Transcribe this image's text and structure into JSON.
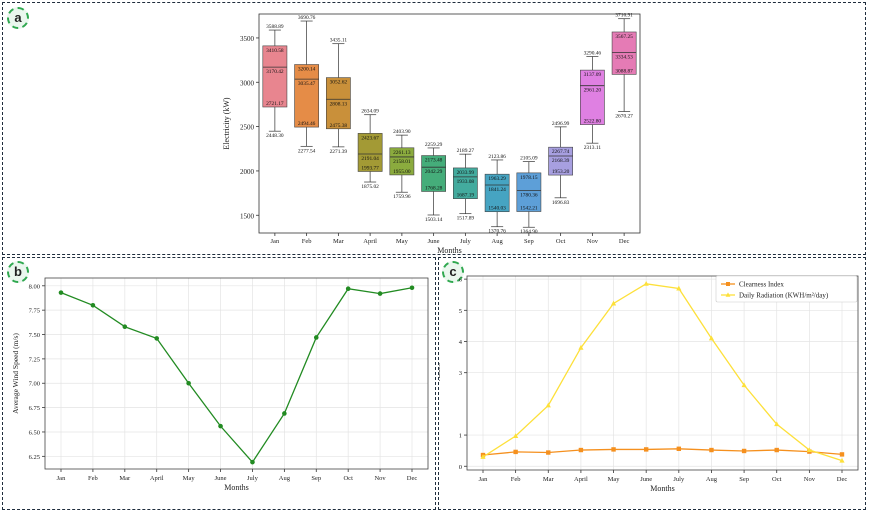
{
  "panels": [
    {
      "label": "a"
    },
    {
      "label": "b"
    },
    {
      "label": "c"
    }
  ],
  "colors": {
    "box": [
      "#e8858f",
      "#e58c47",
      "#c9903a",
      "#a39a35",
      "#8bab3e",
      "#45ad7a",
      "#43ab9e",
      "#46a4c2",
      "#5d9fd8",
      "#a79fe0",
      "#df80e2",
      "#e57bb5"
    ],
    "wind_line": "#228b22",
    "clearness": "#f5901e",
    "radiation": "#fde03a",
    "panel_border": "#1f2d3d",
    "badge": "#2fa84f"
  },
  "chart_data": [
    {
      "type": "box",
      "panel": "a",
      "xlabel": "Months",
      "ylabel": "Electricity (kW)",
      "categories": [
        "Jan",
        "Feb",
        "Mar",
        "April",
        "May",
        "June",
        "July",
        "Aug",
        "Sep",
        "Oct",
        "Nov",
        "Dec"
      ],
      "yticks": [
        1500,
        2000,
        2500,
        3000,
        3500
      ],
      "ylim": [
        1300,
        3770
      ],
      "grid": false,
      "boxes": [
        {
          "max": 3588.89,
          "q3": 3410.58,
          "median": 3170.42,
          "q1": 2721.17,
          "min": 2448.3
        },
        {
          "max": 3690.76,
          "q3": 3200.14,
          "median": 3035.47,
          "q1": 2494.46,
          "min": 2277.54
        },
        {
          "max": 3435.11,
          "q3": 3052.62,
          "median": 2808.13,
          "q1": 2475.38,
          "min": 2271.39
        },
        {
          "max": 2634.09,
          "q3": 2423.67,
          "median": 2191.04,
          "q1": 1993.77,
          "min": 1875.02
        },
        {
          "max": 2403.9,
          "q3": 2261.13,
          "median": 2158.01,
          "q1": 1955.0,
          "min": 1759.96
        },
        {
          "max": 2259.29,
          "q3": 2173.48,
          "median": 2042.29,
          "q1": 1768.28,
          "min": 1503.14
        },
        {
          "max": 2189.27,
          "q3": 2033.99,
          "median": 1933.08,
          "q1": 1687.19,
          "min": 1517.89
        },
        {
          "max": 2123.86,
          "q3": 1963.29,
          "median": 1841.24,
          "q1": 1540.03,
          "min": 1370.76
        },
        {
          "max": 2105.09,
          "q3": 1978.15,
          "median": 1780.36,
          "q1": 1542.21,
          "min": 1364.9
        },
        {
          "max": 2496.99,
          "q3": 2267.74,
          "median": 2168.39,
          "q1": 1953.2,
          "min": 1696.83
        },
        {
          "max": 3290.46,
          "q3": 3137.09,
          "median": 2961.2,
          "q1": 2522.8,
          "min": 2313.11
        },
        {
          "max": 3716.91,
          "q3": 3567.25,
          "median": 3334.53,
          "q1": 3088.87,
          "min": 2670.27
        }
      ]
    },
    {
      "type": "line",
      "panel": "b",
      "xlabel": "Months",
      "ylabel": "Average Wind Speed (m/s)",
      "categories": [
        "Jan",
        "Feb",
        "Mar",
        "April",
        "May",
        "June",
        "July",
        "Aug",
        "Sep",
        "Oct",
        "Nov",
        "Dec"
      ],
      "values": [
        7.93,
        7.8,
        7.58,
        7.46,
        7.0,
        6.56,
        6.19,
        6.69,
        7.47,
        7.97,
        7.92,
        7.98
      ],
      "yticks": [
        6.25,
        6.5,
        6.75,
        7.0,
        7.25,
        7.5,
        7.75,
        8.0
      ],
      "ytick_labels": [
        "6.25",
        "6.50",
        "6.75",
        "7.00",
        "7.25",
        "7.50",
        "7.75",
        "8.00"
      ],
      "ylim": [
        6.12,
        8.08
      ],
      "grid": true
    },
    {
      "type": "line",
      "panel": "c",
      "xlabel": "Months",
      "ylabel": "Values",
      "categories": [
        "Jan",
        "Feb",
        "Mar",
        "April",
        "May",
        "June",
        "July",
        "Aug",
        "Sep",
        "Oct",
        "Nov",
        "Dec"
      ],
      "yticks": [
        0,
        1,
        3,
        4,
        5,
        6
      ],
      "ytick_labels": [
        "0",
        "1",
        "3",
        "4",
        "5",
        "6"
      ],
      "ylim": [
        -0.12,
        6.1
      ],
      "grid": true,
      "legend_position": "top-right",
      "series": [
        {
          "name": "Clearness Index",
          "values": [
            0.36,
            0.46,
            0.44,
            0.52,
            0.54,
            0.54,
            0.56,
            0.52,
            0.49,
            0.52,
            0.47,
            0.38
          ]
        },
        {
          "name": "Daily Radiation (KWH/m²/day)",
          "values": [
            0.3,
            0.97,
            1.95,
            3.8,
            5.22,
            5.85,
            5.7,
            4.1,
            2.6,
            1.35,
            0.52,
            0.18
          ]
        }
      ]
    }
  ]
}
